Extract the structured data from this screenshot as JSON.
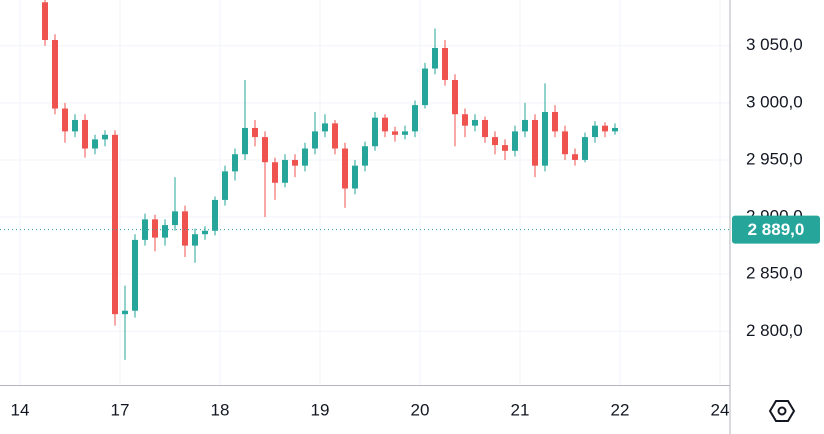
{
  "chart_data": {
    "type": "candlestick",
    "x": [
      0.25,
      0.35,
      0.45,
      0.55,
      0.65,
      0.75,
      0.85,
      0.95,
      1.05,
      1.15,
      1.25,
      1.35,
      1.45,
      1.55,
      1.65,
      1.75,
      1.85,
      1.95,
      2.05,
      2.15,
      2.25,
      2.35,
      2.45,
      2.55,
      2.65,
      2.75,
      2.85,
      2.95,
      3.05,
      3.15,
      3.25,
      3.35,
      3.45,
      3.55,
      3.65,
      3.75,
      3.85,
      3.95,
      4.05,
      4.15,
      4.25,
      4.35,
      4.45,
      4.55,
      4.65,
      4.75,
      4.85,
      4.95,
      5.05,
      5.15,
      5.25,
      5.35,
      5.45,
      5.55,
      5.65,
      5.75,
      5.85,
      5.95
    ],
    "open": [
      3088,
      3055,
      2995,
      2975,
      2985,
      2960,
      2968,
      2972,
      2815,
      2818,
      2880,
      2898,
      2882,
      2893,
      2905,
      2875,
      2885,
      2888,
      2915,
      2940,
      2955,
      2978,
      2970,
      2948,
      2930,
      2950,
      2945,
      2960,
      2975,
      2982,
      2960,
      2925,
      2945,
      2962,
      2987,
      2975,
      2972,
      2975,
      2998,
      3030,
      3048,
      3020,
      2990,
      2980,
      2985,
      2970,
      2963,
      2958,
      2975,
      2985,
      2945,
      2992,
      2975,
      2955,
      2950,
      2970,
      2980,
      2975
    ],
    "high": [
      3090,
      3060,
      3000,
      2990,
      2990,
      2972,
      2976,
      2976,
      2840,
      2885,
      2903,
      2902,
      2898,
      2935,
      2910,
      2890,
      2892,
      2918,
      2945,
      2960,
      3020,
      2985,
      2975,
      2952,
      2955,
      2955,
      2965,
      2992,
      2990,
      2985,
      2965,
      2950,
      2966,
      2992,
      2990,
      2979,
      2980,
      3002,
      3035,
      3065,
      3055,
      3025,
      2995,
      2990,
      2988,
      2975,
      2968,
      2980,
      3000,
      2990,
      3017,
      2998,
      2980,
      2960,
      2974,
      2984,
      2983,
      2982
    ],
    "low": [
      3050,
      2990,
      2965,
      2970,
      2952,
      2955,
      2962,
      2805,
      2775,
      2812,
      2875,
      2870,
      2875,
      2888,
      2865,
      2860,
      2880,
      2884,
      2910,
      2932,
      2950,
      2962,
      2900,
      2915,
      2926,
      2935,
      2940,
      2955,
      2970,
      2955,
      2908,
      2920,
      2940,
      2958,
      2970,
      2966,
      2968,
      2970,
      2995,
      3025,
      3015,
      2962,
      2970,
      2975,
      2965,
      2955,
      2950,
      2953,
      2970,
      2935,
      2940,
      2970,
      2950,
      2945,
      2948,
      2965,
      2970,
      2972
    ],
    "close": [
      3055,
      2995,
      2975,
      2985,
      2960,
      2968,
      2972,
      2815,
      2818,
      2880,
      2898,
      2882,
      2893,
      2905,
      2875,
      2885,
      2888,
      2915,
      2940,
      2955,
      2978,
      2970,
      2948,
      2930,
      2950,
      2945,
      2960,
      2975,
      2982,
      2960,
      2925,
      2945,
      2962,
      2987,
      2975,
      2972,
      2975,
      2998,
      3030,
      3048,
      3020,
      2990,
      2980,
      2985,
      2970,
      2963,
      2958,
      2975,
      2985,
      2945,
      2992,
      2975,
      2955,
      2950,
      2970,
      2980,
      2975,
      2978
    ],
    "up_color": "#26a69a",
    "down_color": "#ef5350",
    "xlim": [
      -0.2,
      7.1
    ],
    "xticks": [
      {
        "value": 0,
        "label": "14"
      },
      {
        "value": 1,
        "label": "17"
      },
      {
        "value": 2,
        "label": "18"
      },
      {
        "value": 3,
        "label": "19"
      },
      {
        "value": 4,
        "label": "20"
      },
      {
        "value": 5,
        "label": "21"
      },
      {
        "value": 6,
        "label": "22"
      },
      {
        "value": 7,
        "label": "24"
      }
    ],
    "ylim": [
      2753,
      3090
    ],
    "yticks": [
      {
        "value": 2800,
        "label": "2 800,0"
      },
      {
        "value": 2850,
        "label": "2 850,0"
      },
      {
        "value": 2900,
        "label": "2 900,0"
      },
      {
        "value": 2950,
        "label": "2 950,0"
      },
      {
        "value": 3000,
        "label": "3 000,0"
      },
      {
        "value": 3050,
        "label": "3 050,0"
      }
    ],
    "last_price": {
      "value": 2889,
      "label": "2 889,0"
    },
    "grid": true
  }
}
